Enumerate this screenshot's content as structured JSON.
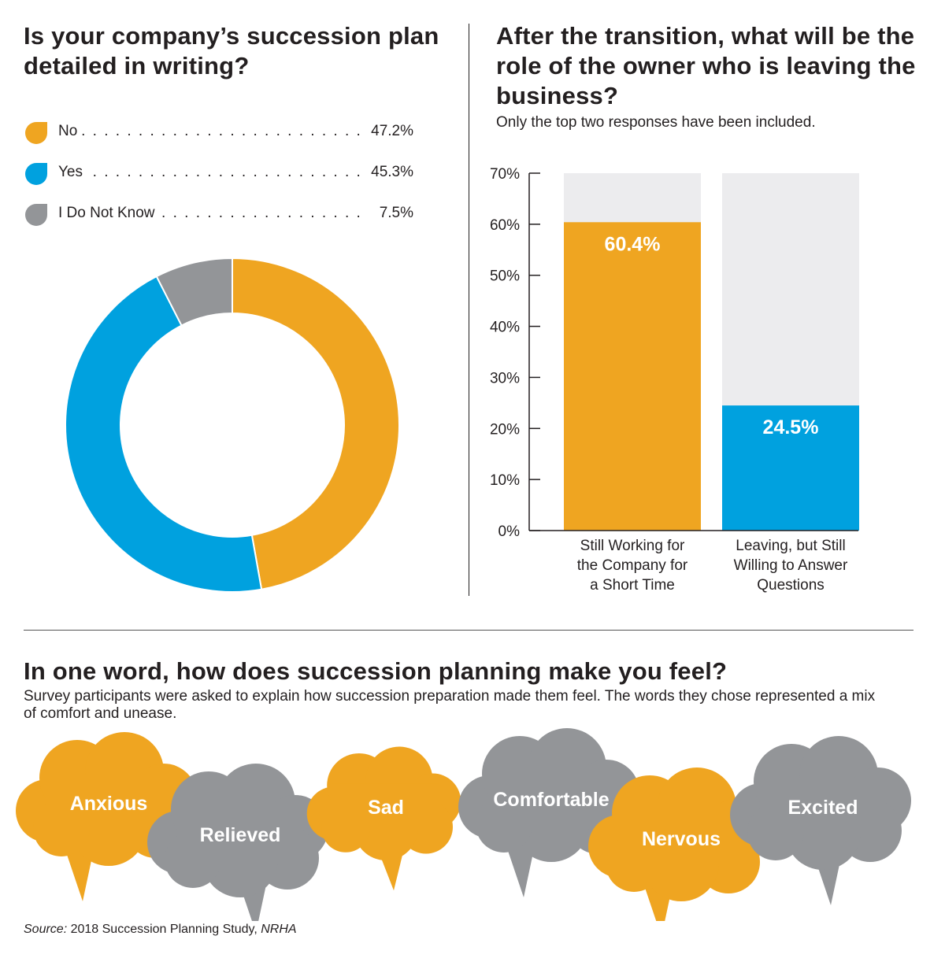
{
  "colors": {
    "orange": "#efa521",
    "blue": "#00a1df",
    "gray": "#939598",
    "track": "#ececee",
    "text": "#231f20"
  },
  "donut_section": {
    "title": "Is your company’s succession plan detailed in writing?"
  },
  "bar_section": {
    "title": "After the transition, what will be the role of the owner who is leaving the business?",
    "subtitle": "Only the top two responses have been included."
  },
  "feel_section": {
    "title": "In one word, how does succession planning make you feel?",
    "subtitle": "Survey participants were asked to explain how succession preparation made them feel. The words they chose represented a mix of comfort and unease.",
    "words": [
      {
        "label": "Anxious",
        "color": "orange"
      },
      {
        "label": "Relieved",
        "color": "gray"
      },
      {
        "label": "Sad",
        "color": "orange"
      },
      {
        "label": "Comfortable",
        "color": "gray"
      },
      {
        "label": "Nervous",
        "color": "orange"
      },
      {
        "label": "Excited",
        "color": "gray"
      }
    ]
  },
  "source": {
    "prefix": "Source:",
    "text": "2018 Succession Planning Study,",
    "org": "NRHA"
  },
  "chart_data": [
    {
      "type": "pie",
      "variant": "donut",
      "categories": [
        "No",
        "Yes",
        "I Do Not Know"
      ],
      "values": [
        47.2,
        45.3,
        7.5
      ],
      "value_labels": [
        "47.2%",
        "45.3%",
        "7.5%"
      ],
      "colors": [
        "#efa521",
        "#00a1df",
        "#939598"
      ],
      "legend": "top-left"
    },
    {
      "type": "bar",
      "categories": [
        [
          "Still Working for",
          "the Company for",
          "a Short Time"
        ],
        [
          "Leaving, but Still",
          "Willing to Answer",
          "Questions"
        ]
      ],
      "values": [
        60.4,
        24.5
      ],
      "data_labels": [
        "60.4%",
        "24.5%"
      ],
      "colors": [
        "#efa521",
        "#00a1df"
      ],
      "ylim": [
        0,
        70
      ],
      "yticks": [
        "0%",
        "10%",
        "20%",
        "30%",
        "40%",
        "50%",
        "60%",
        "70%"
      ],
      "grid": false
    }
  ]
}
